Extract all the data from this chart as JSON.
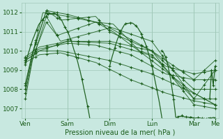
{
  "title": "",
  "xlabel": "Pression niveau de la mer( hPa )",
  "bg_color": "#c8e8e0",
  "grid_color": "#a0c8b8",
  "line_color": "#1a5c1a",
  "ylim": [
    1006.5,
    1012.5
  ],
  "yticks": [
    1007,
    1008,
    1009,
    1010,
    1011,
    1012
  ],
  "x_day_labels": [
    "Ven",
    "Sam",
    "Dim",
    "Lun",
    "Mar",
    "Me"
  ],
  "x_day_positions": [
    0,
    48,
    96,
    144,
    192,
    216
  ],
  "line_configs": [
    {
      "x": [
        0,
        8,
        24,
        40,
        96,
        144,
        192,
        216
      ],
      "y": [
        1007.5,
        1009.5,
        1011.8,
        1010.5,
        1011.2,
        1010.0,
        1007.2,
        1007.0
      ]
    },
    {
      "x": [
        0,
        8,
        24,
        36,
        80,
        144,
        192,
        216
      ],
      "y": [
        1007.8,
        1009.6,
        1011.5,
        1010.8,
        1011.5,
        1010.5,
        1007.5,
        1009.0
      ]
    },
    {
      "x": [
        0,
        8,
        20,
        48,
        80,
        100,
        144,
        192,
        216
      ],
      "y": [
        1008.0,
        1009.8,
        1012.0,
        1011.8,
        1011.5,
        1011.0,
        1009.5,
        1007.8,
        1007.2
      ]
    },
    {
      "x": [
        0,
        8,
        24,
        48,
        80,
        100,
        130,
        144,
        192,
        216
      ],
      "y": [
        1008.2,
        1009.8,
        1012.1,
        1011.9,
        1011.5,
        1011.4,
        1010.0,
        1009.8,
        1007.5,
        1007.5
      ]
    },
    {
      "x": [
        0,
        8,
        24,
        40,
        80,
        96,
        144,
        192,
        216
      ],
      "y": [
        1008.3,
        1009.9,
        1012.1,
        1011.6,
        1011.8,
        1011.0,
        1010.0,
        1008.0,
        1008.0
      ]
    },
    {
      "x": [
        0,
        16,
        48,
        96,
        144,
        192,
        216
      ],
      "y": [
        1009.5,
        1010.0,
        1010.5,
        1010.5,
        1010.0,
        1008.5,
        1008.5
      ]
    },
    {
      "x": [
        0,
        16,
        48,
        80,
        120,
        160,
        192,
        216
      ],
      "y": [
        1009.6,
        1010.1,
        1010.4,
        1010.3,
        1009.8,
        1008.8,
        1008.5,
        1009.5
      ]
    },
    {
      "x": [
        0,
        16,
        48,
        96,
        140,
        160,
        192,
        216
      ],
      "y": [
        1009.7,
        1010.2,
        1010.5,
        1010.4,
        1009.8,
        1009.2,
        1008.8,
        1009.0
      ]
    },
    {
      "x": [
        0,
        16,
        40,
        96,
        144,
        192,
        216
      ],
      "y": [
        1009.5,
        1010.0,
        1010.0,
        1009.5,
        1008.8,
        1007.8,
        1007.2
      ]
    },
    {
      "x": [
        0,
        16,
        40,
        80,
        120,
        160,
        192,
        216
      ],
      "y": [
        1009.4,
        1009.8,
        1009.9,
        1009.4,
        1008.5,
        1007.8,
        1007.4,
        1007.2
      ]
    }
  ]
}
